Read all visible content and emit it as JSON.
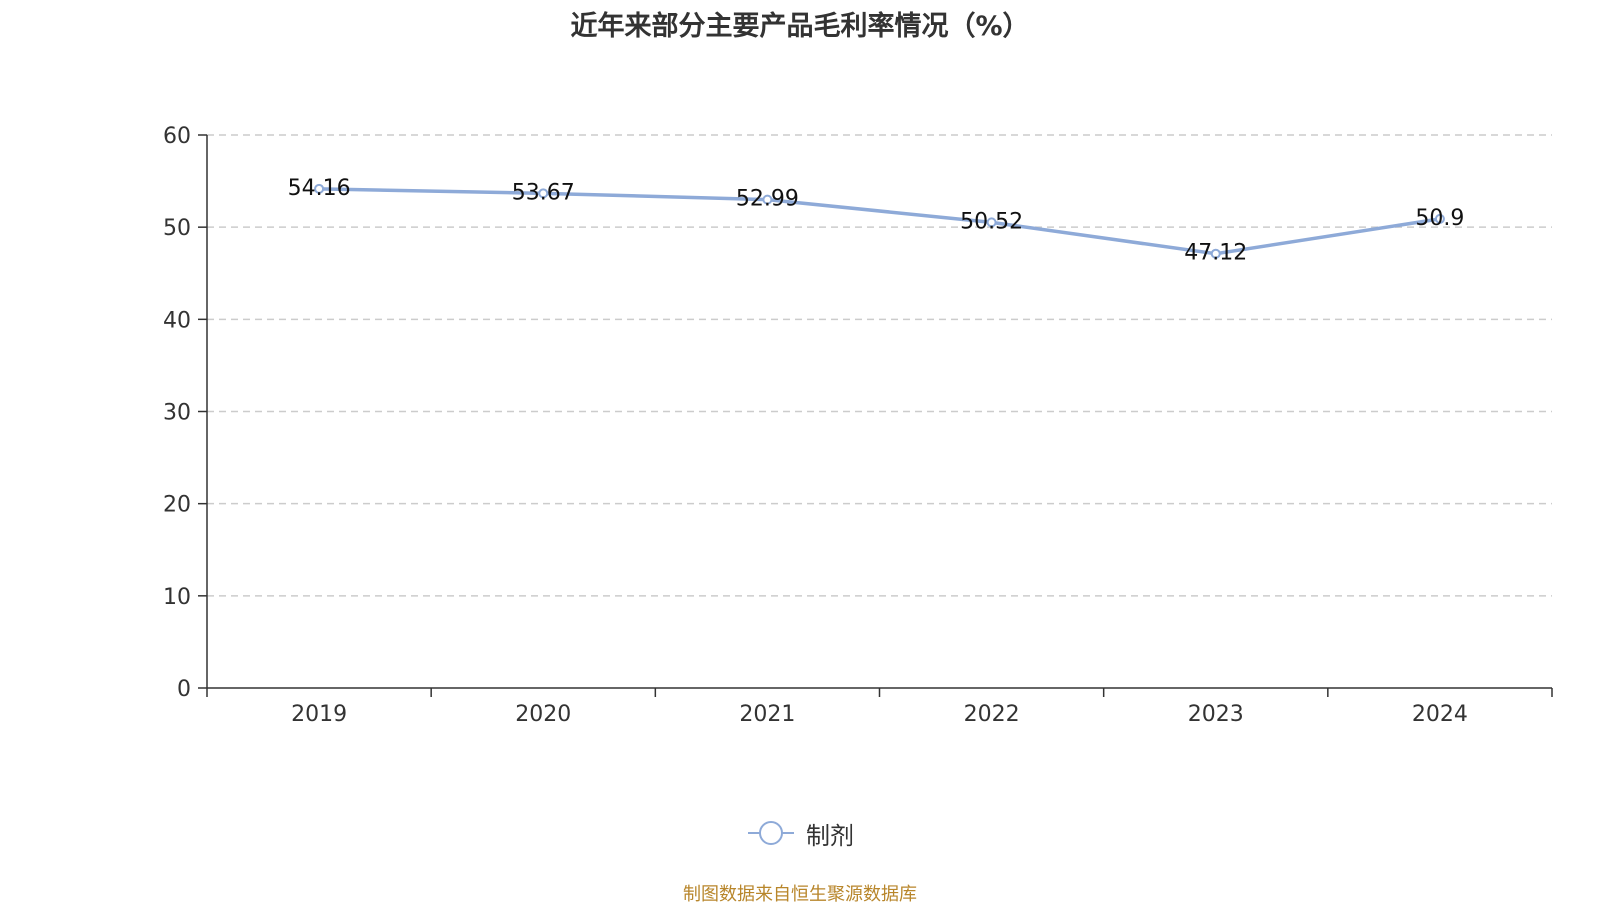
{
  "chart_data": {
    "type": "line",
    "title": "近年来部分主要产品毛利率情况（%）",
    "categories": [
      "2019",
      "2020",
      "2021",
      "2022",
      "2023",
      "2024"
    ],
    "series": [
      {
        "name": "制剂",
        "values": [
          54.16,
          53.67,
          52.99,
          50.52,
          47.12,
          50.9
        ],
        "labels": [
          "54.16",
          "53.67",
          "52.99",
          "50.52",
          "47.12",
          "50.9"
        ],
        "color": "#8eaad8"
      }
    ],
    "ylim": [
      0,
      60
    ],
    "yticks": [
      "0",
      "10",
      "20",
      "30",
      "40",
      "50",
      "60"
    ],
    "xlabel": "",
    "ylabel": "",
    "grid": true,
    "grid_style": "dashed",
    "legend_position": "bottom-center"
  },
  "source_note": "制图数据来自恒生聚源数据库",
  "colors": {
    "series": "#8eaad8",
    "axis": "#333333",
    "grid": "#cccccc",
    "text": "#333333",
    "source": "#b8862b"
  }
}
